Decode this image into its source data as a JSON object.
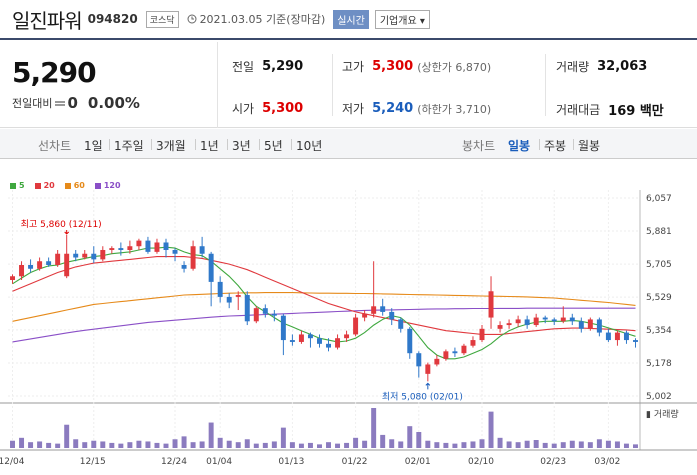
{
  "header": {
    "name": "일진파워",
    "code": "094820",
    "market": "코스닥",
    "date": "2021.03.05",
    "basis": "기준(장마감)",
    "realtime_label": "실시간",
    "company_info_label": "기업개요"
  },
  "quote": {
    "price": "5,290",
    "change_label": "전일대비",
    "change_value": "0",
    "change_pct": "0.00%",
    "prev_label": "전일",
    "prev": "5,290",
    "high_label": "고가",
    "high": "5,300",
    "upper_limit": "(상한가 6,870)",
    "volume_label": "거래량",
    "volume": "32,063",
    "open_label": "시가",
    "open": "5,300",
    "low_label": "저가",
    "low": "5,240",
    "lower_limit": "(하한가 3,710)",
    "amount_label": "거래대금",
    "amount": "169 백만"
  },
  "tabs": {
    "left": [
      "선차트",
      "1일",
      "1주일",
      "3개월",
      "1년",
      "3년",
      "5년",
      "10년"
    ],
    "right": [
      "봉차트",
      "일봉",
      "주봉",
      "월봉"
    ],
    "active": "일봉"
  },
  "chart_data": {
    "type": "candlestick",
    "legend": [
      {
        "name": "5",
        "color": "#3fa83f"
      },
      {
        "name": "20",
        "color": "#e0393e"
      },
      {
        "name": "60",
        "color": "#e68a1a"
      },
      {
        "name": "120",
        "color": "#8a4fc7"
      }
    ],
    "x_labels": [
      "12/04",
      "12/15",
      "12/24",
      "01/04",
      "01/13",
      "01/22",
      "02/01",
      "02/10",
      "02/23",
      "03/02"
    ],
    "y_ticks": [
      "6,057",
      "5,881",
      "5,705",
      "5,529",
      "5,354",
      "5,178",
      "5,002"
    ],
    "ylim": [
      5002,
      6057
    ],
    "max_annotation": "최고 5,860 (12/11)",
    "min_annotation": "최저 5,080 (02/01)",
    "volume_label": "거래량",
    "colors": {
      "up": "#e0393e",
      "down": "#2f78c9",
      "volume": "#8b7bbf"
    },
    "candles": [
      [
        5620,
        5640,
        5600,
        5650
      ],
      [
        5640,
        5700,
        5620,
        5720
      ],
      [
        5700,
        5680,
        5660,
        5730
      ],
      [
        5680,
        5720,
        5670,
        5740
      ],
      [
        5720,
        5700,
        5690,
        5740
      ],
      [
        5700,
        5760,
        5690,
        5780
      ],
      [
        5640,
        5760,
        5630,
        5860
      ],
      [
        5760,
        5740,
        5720,
        5780
      ],
      [
        5740,
        5760,
        5730,
        5780
      ],
      [
        5760,
        5730,
        5710,
        5800
      ],
      [
        5730,
        5780,
        5720,
        5800
      ],
      [
        5780,
        5790,
        5760,
        5800
      ],
      [
        5790,
        5780,
        5750,
        5820
      ],
      [
        5780,
        5800,
        5760,
        5830
      ],
      [
        5800,
        5830,
        5780,
        5840
      ],
      [
        5830,
        5770,
        5760,
        5850
      ],
      [
        5770,
        5820,
        5760,
        5840
      ],
      [
        5820,
        5780,
        5740,
        5840
      ],
      [
        5780,
        5760,
        5720,
        5790
      ],
      [
        5700,
        5680,
        5660,
        5720
      ],
      [
        5680,
        5800,
        5670,
        5830
      ],
      [
        5800,
        5760,
        5740,
        5850
      ],
      [
        5760,
        5610,
        5480,
        5770
      ],
      [
        5610,
        5530,
        5500,
        5640
      ],
      [
        5530,
        5500,
        5470,
        5550
      ],
      [
        5530,
        5540,
        5460,
        5560
      ],
      [
        5540,
        5400,
        5380,
        5560
      ],
      [
        5400,
        5470,
        5390,
        5480
      ],
      [
        5470,
        5440,
        5420,
        5490
      ],
      [
        5440,
        5430,
        5400,
        5460
      ],
      [
        5430,
        5300,
        5220,
        5440
      ],
      [
        5300,
        5290,
        5270,
        5330
      ],
      [
        5290,
        5330,
        5280,
        5350
      ],
      [
        5330,
        5310,
        5260,
        5340
      ],
      [
        5310,
        5280,
        5260,
        5330
      ],
      [
        5280,
        5260,
        5240,
        5310
      ],
      [
        5260,
        5310,
        5250,
        5330
      ],
      [
        5310,
        5330,
        5290,
        5350
      ],
      [
        5330,
        5420,
        5320,
        5440
      ],
      [
        5420,
        5440,
        5400,
        5460
      ],
      [
        5440,
        5480,
        5420,
        5720
      ],
      [
        5480,
        5450,
        5430,
        5520
      ],
      [
        5450,
        5410,
        5380,
        5470
      ],
      [
        5410,
        5360,
        5340,
        5420
      ],
      [
        5360,
        5230,
        5200,
        5370
      ],
      [
        5230,
        5160,
        5100,
        5240
      ],
      [
        5120,
        5170,
        5080,
        5180
      ],
      [
        5170,
        5200,
        5160,
        5220
      ],
      [
        5200,
        5240,
        5190,
        5250
      ],
      [
        5240,
        5230,
        5210,
        5260
      ],
      [
        5230,
        5270,
        5220,
        5280
      ],
      [
        5270,
        5300,
        5260,
        5320
      ],
      [
        5300,
        5360,
        5290,
        5380
      ],
      [
        5420,
        5560,
        5360,
        5640
      ],
      [
        5360,
        5380,
        5340,
        5400
      ],
      [
        5380,
        5390,
        5360,
        5410
      ],
      [
        5390,
        5410,
        5370,
        5430
      ],
      [
        5410,
        5380,
        5360,
        5430
      ],
      [
        5380,
        5420,
        5370,
        5440
      ],
      [
        5420,
        5410,
        5390,
        5430
      ],
      [
        5410,
        5400,
        5380,
        5420
      ],
      [
        5400,
        5420,
        5390,
        5480
      ],
      [
        5420,
        5400,
        5380,
        5440
      ],
      [
        5400,
        5360,
        5340,
        5420
      ],
      [
        5360,
        5410,
        5350,
        5420
      ],
      [
        5410,
        5340,
        5320,
        5420
      ],
      [
        5340,
        5300,
        5290,
        5360
      ],
      [
        5300,
        5340,
        5270,
        5350
      ],
      [
        5340,
        5300,
        5280,
        5350
      ],
      [
        5300,
        5290,
        5260,
        5310
      ]
    ],
    "volumes": [
      10,
      14,
      8,
      9,
      7,
      6,
      32,
      12,
      8,
      10,
      9,
      7,
      6,
      8,
      10,
      9,
      7,
      6,
      12,
      16,
      8,
      9,
      35,
      14,
      10,
      8,
      12,
      6,
      7,
      9,
      28,
      8,
      6,
      7,
      5,
      8,
      6,
      7,
      14,
      10,
      55,
      18,
      12,
      9,
      30,
      22,
      10,
      8,
      7,
      6,
      8,
      9,
      12,
      50,
      14,
      9,
      8,
      10,
      11,
      7,
      6,
      8,
      10,
      9,
      8,
      12,
      10,
      9,
      6,
      5
    ],
    "ma": {
      "5": [
        5600,
        5630,
        5660,
        5680,
        5695,
        5700,
        5715,
        5725,
        5735,
        5745,
        5750,
        5760,
        5765,
        5770,
        5780,
        5790,
        5790,
        5795,
        5790,
        5770,
        5755,
        5750,
        5720,
        5680,
        5640,
        5590,
        5530,
        5480,
        5450,
        5420,
        5390,
        5370,
        5350,
        5330,
        5310,
        5300,
        5290,
        5295,
        5310,
        5340,
        5380,
        5410,
        5430,
        5420,
        5380,
        5320,
        5260,
        5220,
        5200,
        5200,
        5210,
        5230,
        5250,
        5280,
        5320,
        5350,
        5370,
        5385,
        5395,
        5400,
        5400,
        5400,
        5405,
        5400,
        5390,
        5380,
        5365,
        5350,
        5335,
        5320
      ],
      "20": [
        5560,
        5580,
        5600,
        5620,
        5640,
        5660,
        5675,
        5690,
        5700,
        5710,
        5715,
        5720,
        5725,
        5730,
        5735,
        5740,
        5745,
        5745,
        5745,
        5745,
        5740,
        5735,
        5725,
        5715,
        5705,
        5690,
        5675,
        5655,
        5635,
        5615,
        5595,
        5575,
        5555,
        5535,
        5515,
        5495,
        5480,
        5465,
        5450,
        5440,
        5430,
        5420,
        5410,
        5400,
        5390,
        5380,
        5370,
        5360,
        5350,
        5345,
        5340,
        5335,
        5330,
        5330,
        5330,
        5335,
        5340,
        5345,
        5350,
        5355,
        5360,
        5362,
        5364,
        5364,
        5362,
        5360,
        5358,
        5356,
        5354,
        5350
      ],
      "60": [
        5400,
        5410,
        5420,
        5430,
        5440,
        5450,
        5460,
        5470,
        5480,
        5490,
        5495,
        5500,
        5505,
        5510,
        5515,
        5520,
        5525,
        5530,
        5535,
        5540,
        5542,
        5544,
        5546,
        5548,
        5550,
        5551,
        5552,
        5552,
        5553,
        5553,
        5553,
        5553,
        5552,
        5551,
        5550,
        5550,
        5549,
        5549,
        5548,
        5548,
        5547,
        5546,
        5545,
        5544,
        5543,
        5542,
        5541,
        5540,
        5539,
        5538,
        5537,
        5536,
        5535,
        5534,
        5533,
        5532,
        5531,
        5530,
        5528,
        5526,
        5524,
        5520,
        5516,
        5512,
        5508,
        5504,
        5500,
        5495,
        5490,
        5485
      ],
      "120": [
        5290,
        5298,
        5306,
        5314,
        5322,
        5330,
        5338,
        5345,
        5352,
        5358,
        5364,
        5370,
        5376,
        5382,
        5388,
        5394,
        5398,
        5402,
        5406,
        5410,
        5414,
        5418,
        5422,
        5425,
        5428,
        5430,
        5432,
        5434,
        5436,
        5438,
        5440,
        5442,
        5444,
        5446,
        5448,
        5450,
        5452,
        5454,
        5456,
        5458,
        5459,
        5460,
        5461,
        5462,
        5463,
        5464,
        5465,
        5466,
        5466,
        5467,
        5467,
        5468,
        5468,
        5468,
        5469,
        5469,
        5469,
        5470,
        5470,
        5470,
        5470,
        5470,
        5470,
        5470,
        5470,
        5470,
        5470,
        5470,
        5470,
        5470
      ]
    }
  }
}
